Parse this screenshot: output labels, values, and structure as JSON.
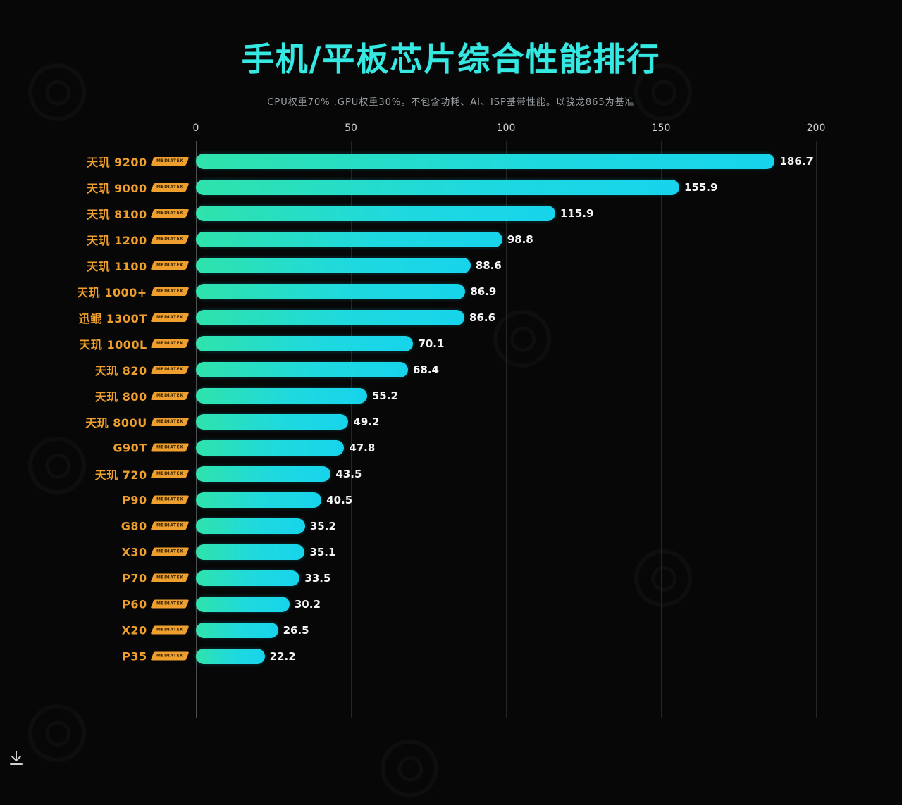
{
  "title": {
    "part1": "手机/平板芯片",
    "part2": "综合性能排行"
  },
  "subtitle": "CPU权重70% ,GPU权重30%。不包含功耗、AI、ISP基带性能。以骁龙865为基准",
  "badge_label": "MEDIATEK",
  "chart_data": {
    "type": "bar",
    "orientation": "horizontal",
    "title": "手机/平板芯片综合性能排行",
    "subtitle": "CPU权重70% ,GPU权重30%。不包含功耗、AI、ISP基带性能。以骁龙865为基准",
    "xlim": [
      0,
      200
    ],
    "ticks": [
      0,
      50,
      100,
      150,
      200
    ],
    "grid": true,
    "categories": [
      "天玑 9200",
      "天玑 9000",
      "天玑 8100",
      "天玑 1200",
      "天玑 1100",
      "天玑 1000+",
      "迅鲲 1300T",
      "天玑 1000L",
      "天玑 820",
      "天玑 800",
      "天玑 800U",
      "G90T",
      "天玑 720",
      "P90",
      "G80",
      "X30",
      "P70",
      "P60",
      "X20",
      "P35"
    ],
    "values": [
      186.7,
      155.9,
      115.9,
      98.8,
      88.6,
      86.9,
      86.6,
      70.1,
      68.4,
      55.2,
      49.2,
      47.8,
      43.5,
      40.5,
      35.2,
      35.1,
      33.5,
      30.2,
      26.5,
      22.2
    ],
    "colors": {
      "bar_gradient_start": "#2fe3ab",
      "bar_gradient_end": "#17d4ec",
      "label_color": "#ef9f2e",
      "title_color": "#35e8e2",
      "value_color": "#f4f5f6",
      "background": "#070707"
    }
  }
}
